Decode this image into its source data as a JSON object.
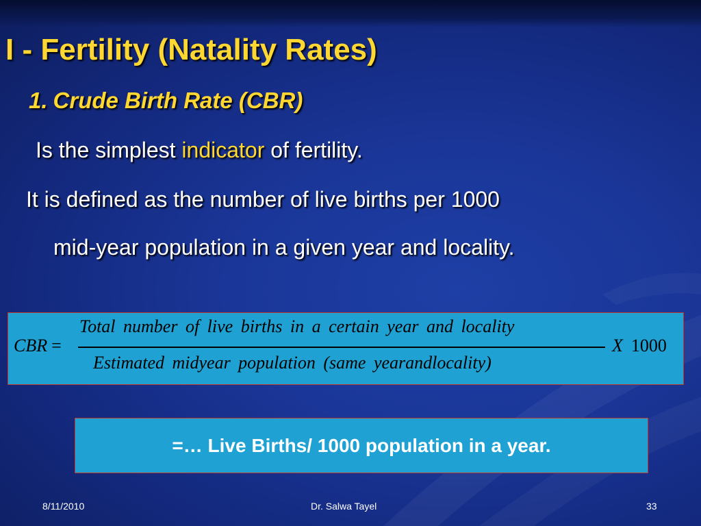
{
  "slide": {
    "title": "I - Fertility (Natality Rates)",
    "subtitle_number": "1.",
    "subtitle": "Crude Birth Rate (CBR)",
    "line1_pre": "Is the simplest ",
    "line1_highlight": "indicator",
    "line1_post": " of fertility.",
    "line2": "It is defined as the number of live births per 1000",
    "line3": "mid-year population in a given year and locality."
  },
  "formula": {
    "lhs": "CBR",
    "equals": "=",
    "numerator": "Total number of live births in a certain year and locality",
    "denominator": "Estimated midyear population (same yearandlocality)",
    "multiplier_symbol": "X",
    "multiplier_value": "1000"
  },
  "result": {
    "text": "=… Live Births/ 1000 population in a year."
  },
  "footer": {
    "date": "8/11/2010",
    "author": "Dr. Salwa Tayel",
    "page": "33"
  },
  "colors": {
    "background": "#1a3698",
    "title": "#ffd733",
    "box_fill": "#1fa2d3",
    "box_border": "#c0392b"
  }
}
